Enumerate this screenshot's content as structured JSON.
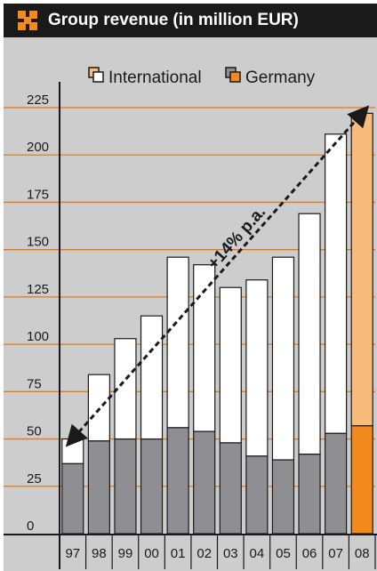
{
  "chart_data": {
    "type": "bar",
    "title": "Group revenue (in million EUR)",
    "categories": [
      "97",
      "98",
      "99",
      "00",
      "01",
      "02",
      "03",
      "04",
      "05",
      "06",
      "07",
      "08"
    ],
    "series": [
      {
        "name": "Germany",
        "values": [
          37,
          49,
          50,
          50,
          56,
          54,
          48,
          41,
          39,
          42,
          53,
          57
        ]
      },
      {
        "name": "International",
        "values": [
          13,
          35,
          53,
          65,
          90,
          88,
          82,
          93,
          107,
          127,
          158,
          165
        ]
      }
    ],
    "ylim": [
      0,
      225
    ],
    "yticks": [
      0,
      25,
      50,
      75,
      100,
      125,
      150,
      175,
      200,
      225
    ],
    "annotation": "+14% p.a.",
    "legend_position": "top-right",
    "grid": true,
    "colors": {
      "germany": "#8e8e93",
      "international": "#ffffff",
      "germany_highlight": "#f28a1e",
      "international_highlight": "#f8bb7c",
      "gridline": "#e07b1a",
      "background": "#cdcdcd",
      "header": "#1a1a1a",
      "logo": "#f28a1e"
    }
  }
}
